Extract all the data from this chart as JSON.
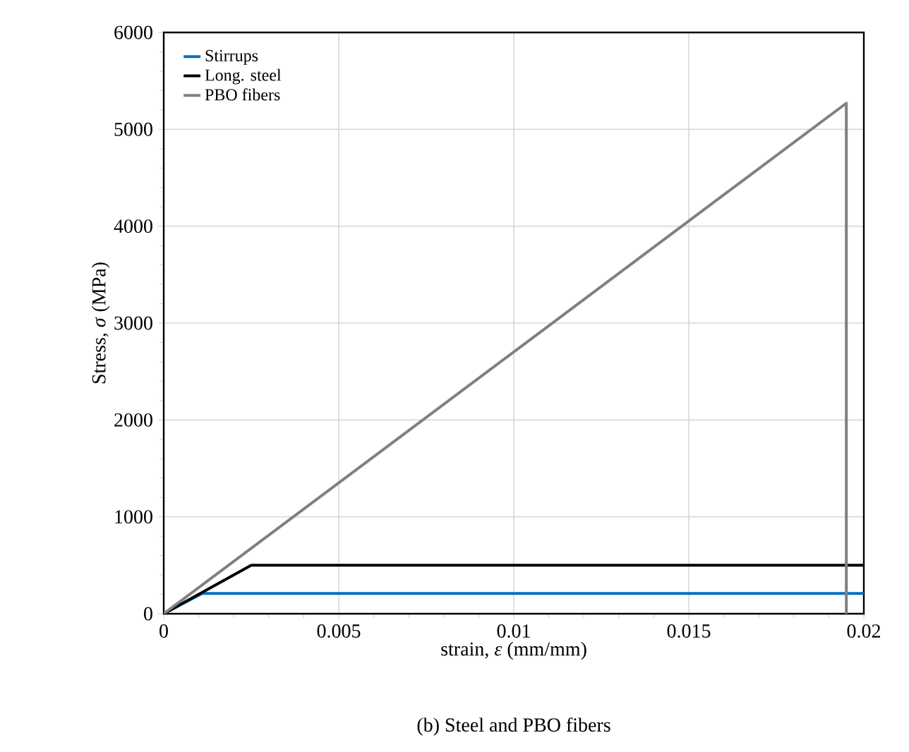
{
  "chart_data": {
    "type": "line",
    "xlabel": "strain, *ε* (mm/mm)",
    "ylabel": "Stress, *σ* (MPa)",
    "annotations": [
      "(b) Steel and PBO fibers"
    ],
    "series": [
      {
        "name": "Stirrups",
        "color": "#0070c0",
        "x": [
          0,
          0.0011,
          0.02
        ],
        "values": [
          0,
          210,
          210
        ]
      },
      {
        "name": "Long. steel",
        "color": "#000000",
        "x": [
          0,
          0.0025,
          0.02
        ],
        "values": [
          0,
          500,
          500
        ]
      },
      {
        "name": "PBO fibers",
        "color": "#808080",
        "x": [
          0,
          0.0195,
          0.0195
        ],
        "values": [
          0,
          5270,
          0
        ]
      }
    ],
    "xlim": [
      0,
      0.02
    ],
    "ylim": [
      0,
      6000
    ],
    "xticks": [
      0,
      0.005,
      0.01,
      0.015,
      0.02
    ],
    "yticks": [
      0,
      1000,
      2000,
      3000,
      4000,
      5000,
      6000
    ],
    "grid": true,
    "legend": "top left",
    "marker": "none",
    "line_style": "solid"
  }
}
